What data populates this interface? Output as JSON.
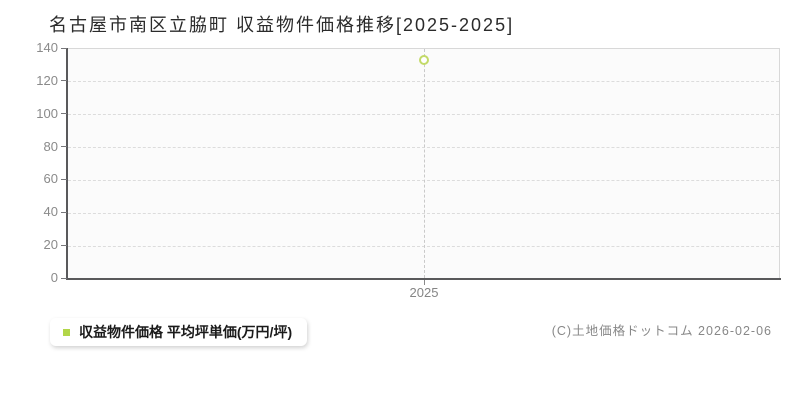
{
  "title": "名古屋市南区立脇町 収益物件価格推移[2025-2025]",
  "legend": {
    "label": "収益物件価格 平均坪単価(万円/坪)",
    "marker_color": "#b2d649"
  },
  "footer": {
    "copyright": "(C)土地価格ドットコム 2026-02-06"
  },
  "colors": {
    "accent_green": "#b2d649",
    "point_ring": "#c3da68",
    "axis_dark": "#59595b",
    "gridline": "#dcdcdc",
    "label_gray": "#8a8a8a",
    "plot_bg": "#fbfbfb"
  },
  "chart_data": {
    "type": "scatter",
    "title": "名古屋市南区立脇町 収益物件価格推移[2025-2025]",
    "x": [
      "2025"
    ],
    "series": [
      {
        "name": "収益物件価格 平均坪単価(万円/坪)",
        "values": [
          133
        ]
      }
    ],
    "xlabel": "",
    "ylabel": "",
    "ylim": [
      0,
      140
    ],
    "yticks": [
      0,
      20,
      40,
      60,
      80,
      100,
      120,
      140
    ],
    "grid": true,
    "marker": "open-circle",
    "legend_position": "bottom-left"
  }
}
